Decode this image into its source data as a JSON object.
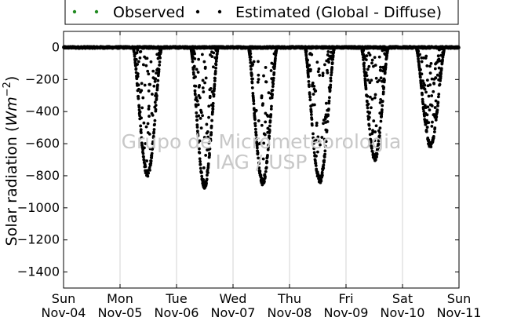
{
  "chart_data": {
    "type": "scatter",
    "title": "",
    "xlabel": "",
    "ylabel_main": "Solar radiation (",
    "ylabel_unit": "Wm",
    "ylabel_exp": "−2",
    "ylabel_close": ")",
    "ylim": [
      -1500,
      100
    ],
    "xlim": [
      0,
      7
    ],
    "y_ticks": [
      0,
      -200,
      -400,
      -600,
      -800,
      -1000,
      -1200,
      -1400
    ],
    "y_tick_labels": [
      "0",
      "−200",
      "−400",
      "−600",
      "−800",
      "−1000",
      "−1200",
      "−1400"
    ],
    "x_ticks": [
      0,
      1,
      2,
      3,
      4,
      5,
      6,
      7
    ],
    "x_tick_labels": [
      {
        "day": "Sun",
        "date": "Nov-04"
      },
      {
        "day": "Mon",
        "date": "Nov-05"
      },
      {
        "day": "Tue",
        "date": "Nov-06"
      },
      {
        "day": "Wed",
        "date": "Nov-07"
      },
      {
        "day": "Thu",
        "date": "Nov-08"
      },
      {
        "day": "Fri",
        "date": "Nov-09"
      },
      {
        "day": "Sat",
        "date": "Nov-10"
      },
      {
        "day": "Sun",
        "date": "Nov-11"
      }
    ],
    "grid": "vertical",
    "legend_position": "top-outside",
    "series": [
      {
        "name": "Observed",
        "color": "#228b22",
        "marker": "dot"
      },
      {
        "name": "Estimated (Global - Diffuse)",
        "color": "#000000",
        "marker": "dot"
      }
    ],
    "daily_minimum": [
      {
        "day": "Nov-05",
        "min": -800
      },
      {
        "day": "Nov-06",
        "min": -870
      },
      {
        "day": "Nov-07",
        "min": -850
      },
      {
        "day": "Nov-08",
        "min": -840
      },
      {
        "day": "Nov-09",
        "min": -700
      },
      {
        "day": "Nov-10",
        "min": -620
      }
    ]
  },
  "watermark": {
    "line1": "Grupo de Micrometeorologia",
    "line2": "IAG / USP"
  }
}
